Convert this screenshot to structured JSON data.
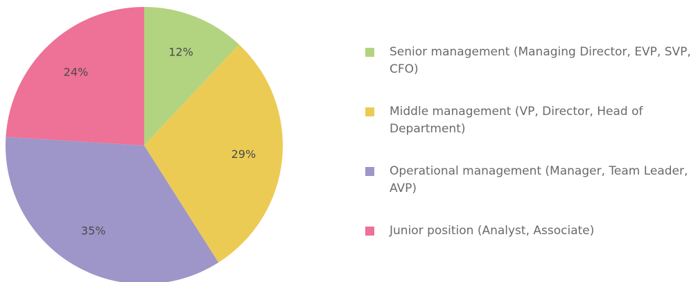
{
  "chart_data": {
    "type": "pie",
    "categories": [
      "Senior management (Managing Director, EVP, SVP, CFO)",
      "Middle management (VP, Director, Head of Department)",
      "Operational management (Manager, Team Leader, AVP)",
      "Junior position (Analyst, Associate)"
    ],
    "values": [
      12,
      29,
      35,
      24
    ],
    "value_labels": [
      "12%",
      "29%",
      "35%",
      "24%"
    ],
    "colors": [
      "#b2d480",
      "#eccb55",
      "#9e96c8",
      "#ee7197"
    ]
  }
}
